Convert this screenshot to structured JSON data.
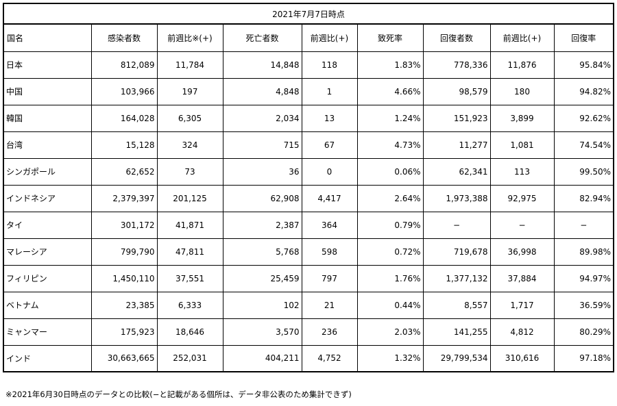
{
  "table": {
    "title": "2021年7月7日時点",
    "headers": [
      "国名",
      "感染者数",
      "前週比※(+)",
      "死亡者数",
      "前週比(+)",
      "致死率",
      "回復者数",
      "前週比(+)",
      "回復率"
    ],
    "rows": [
      [
        "日本",
        "812,089",
        "11,784",
        "14,848",
        "118",
        "1.83%",
        "778,336",
        "11,876",
        "95.84%"
      ],
      [
        "中国",
        "103,966",
        "197",
        "4,848",
        "1",
        "4.66%",
        "98,579",
        "180",
        "94.82%"
      ],
      [
        "韓国",
        "164,028",
        "6,305",
        "2,034",
        "13",
        "1.24%",
        "151,923",
        "3,899",
        "92.62%"
      ],
      [
        "台湾",
        "15,128",
        "324",
        "715",
        "67",
        "4.73%",
        "11,277",
        "1,081",
        "74.54%"
      ],
      [
        "シンガポール",
        "62,652",
        "73",
        "36",
        "0",
        "0.06%",
        "62,341",
        "113",
        "99.50%"
      ],
      [
        "インドネシア",
        "2,379,397",
        "201,125",
        "62,908",
        "4,417",
        "2.64%",
        "1,973,388",
        "92,975",
        "82.94%"
      ],
      [
        "タイ",
        "301,172",
        "41,871",
        "2,387",
        "364",
        "0.79%",
        "−",
        "−",
        "−"
      ],
      [
        "マレーシア",
        "799,790",
        "47,811",
        "5,768",
        "598",
        "0.72%",
        "719,678",
        "36,998",
        "89.98%"
      ],
      [
        "フィリピン",
        "1,450,110",
        "37,551",
        "25,459",
        "797",
        "1.76%",
        "1,377,132",
        "37,884",
        "94.97%"
      ],
      [
        "ベトナム",
        "23,385",
        "6,333",
        "102",
        "21",
        "0.44%",
        "8,557",
        "1,717",
        "36.59%"
      ],
      [
        "ミャンマー",
        "175,923",
        "18,646",
        "3,570",
        "236",
        "2.03%",
        "141,255",
        "4,812",
        "80.29%"
      ],
      [
        "インド",
        "30,663,665",
        "252,031",
        "404,211",
        "4,752",
        "1.32%",
        "29,799,534",
        "310,616",
        "97.18%"
      ]
    ]
  },
  "footnote": "※2021年6月30日時点のデータとの比較(−と記載がある個所は、データ非公表のため集計できず)"
}
